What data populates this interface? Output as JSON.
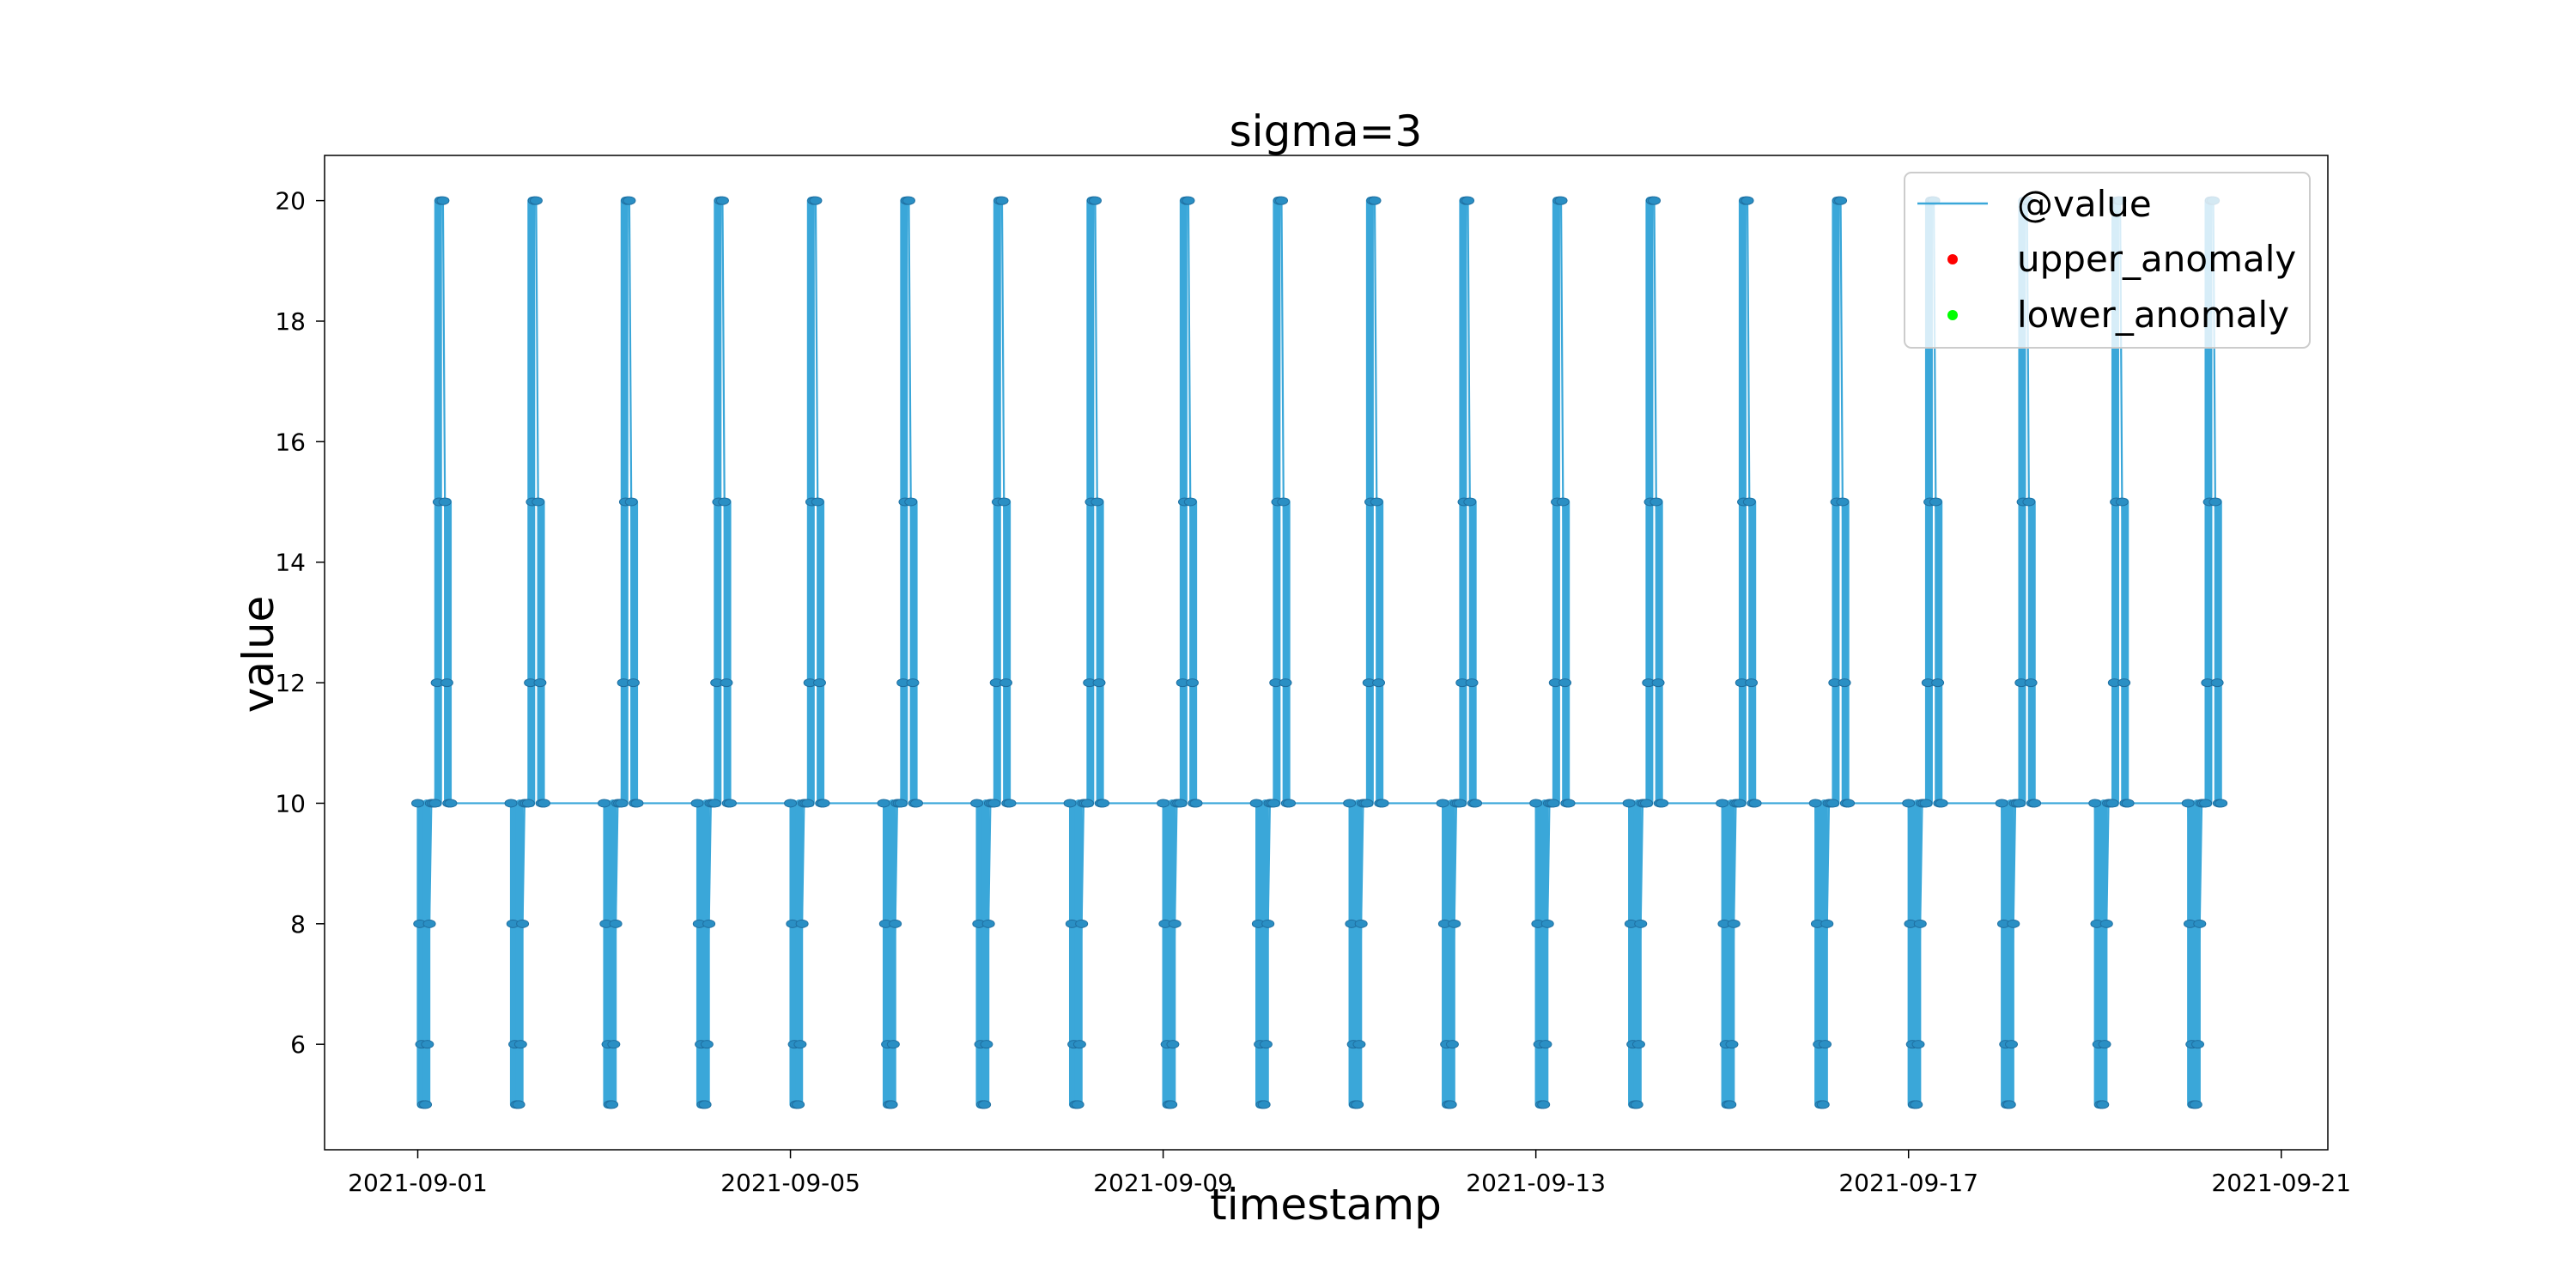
{
  "chart_data": {
    "type": "line",
    "title": "sigma=3",
    "xlabel": "timestamp",
    "ylabel": "value",
    "x_range": [
      "2021-08-31T00:00",
      "2021-09-21T12:00"
    ],
    "ylim": [
      4.25,
      20.75
    ],
    "x_ticks": [
      "2021-09-01",
      "2021-09-05",
      "2021-09-09",
      "2021-09-13",
      "2021-09-17",
      "2021-09-21"
    ],
    "y_ticks": [
      6,
      8,
      10,
      12,
      14,
      16,
      18,
      20
    ],
    "grid": false,
    "legend": {
      "position": "top-right",
      "entries": [
        {
          "label": "@value",
          "kind": "line",
          "color": "#3aa7d9"
        },
        {
          "label": "upper_anomaly",
          "kind": "marker",
          "color": "#ff0000"
        },
        {
          "label": "lower_anomaly",
          "kind": "marker",
          "color": "#00ff00"
        }
      ]
    },
    "series": [
      {
        "name": "@value",
        "color": "#3aa7d9",
        "daily_cycle": {
          "first_day": "2021-09-01",
          "days": 20,
          "points": [
            [
              "00:00",
              10
            ],
            [
              "00:30",
              8
            ],
            [
              "01:00",
              6
            ],
            [
              "01:30",
              5
            ],
            [
              "02:00",
              5
            ],
            [
              "02:30",
              6
            ],
            [
              "03:00",
              8
            ],
            [
              "03:30",
              10
            ],
            [
              "04:00",
              10
            ],
            [
              "04:30",
              10
            ],
            [
              "05:00",
              12
            ],
            [
              "05:30",
              15
            ],
            [
              "06:00",
              20
            ],
            [
              "06:30",
              20
            ],
            [
              "07:00",
              15
            ],
            [
              "07:30",
              12
            ],
            [
              "08:00",
              10
            ],
            [
              "08:30",
              10
            ]
          ]
        }
      },
      {
        "name": "upper_anomaly",
        "color": "#ff0000",
        "points": []
      },
      {
        "name": "lower_anomaly",
        "color": "#00ff00",
        "points": []
      }
    ]
  }
}
